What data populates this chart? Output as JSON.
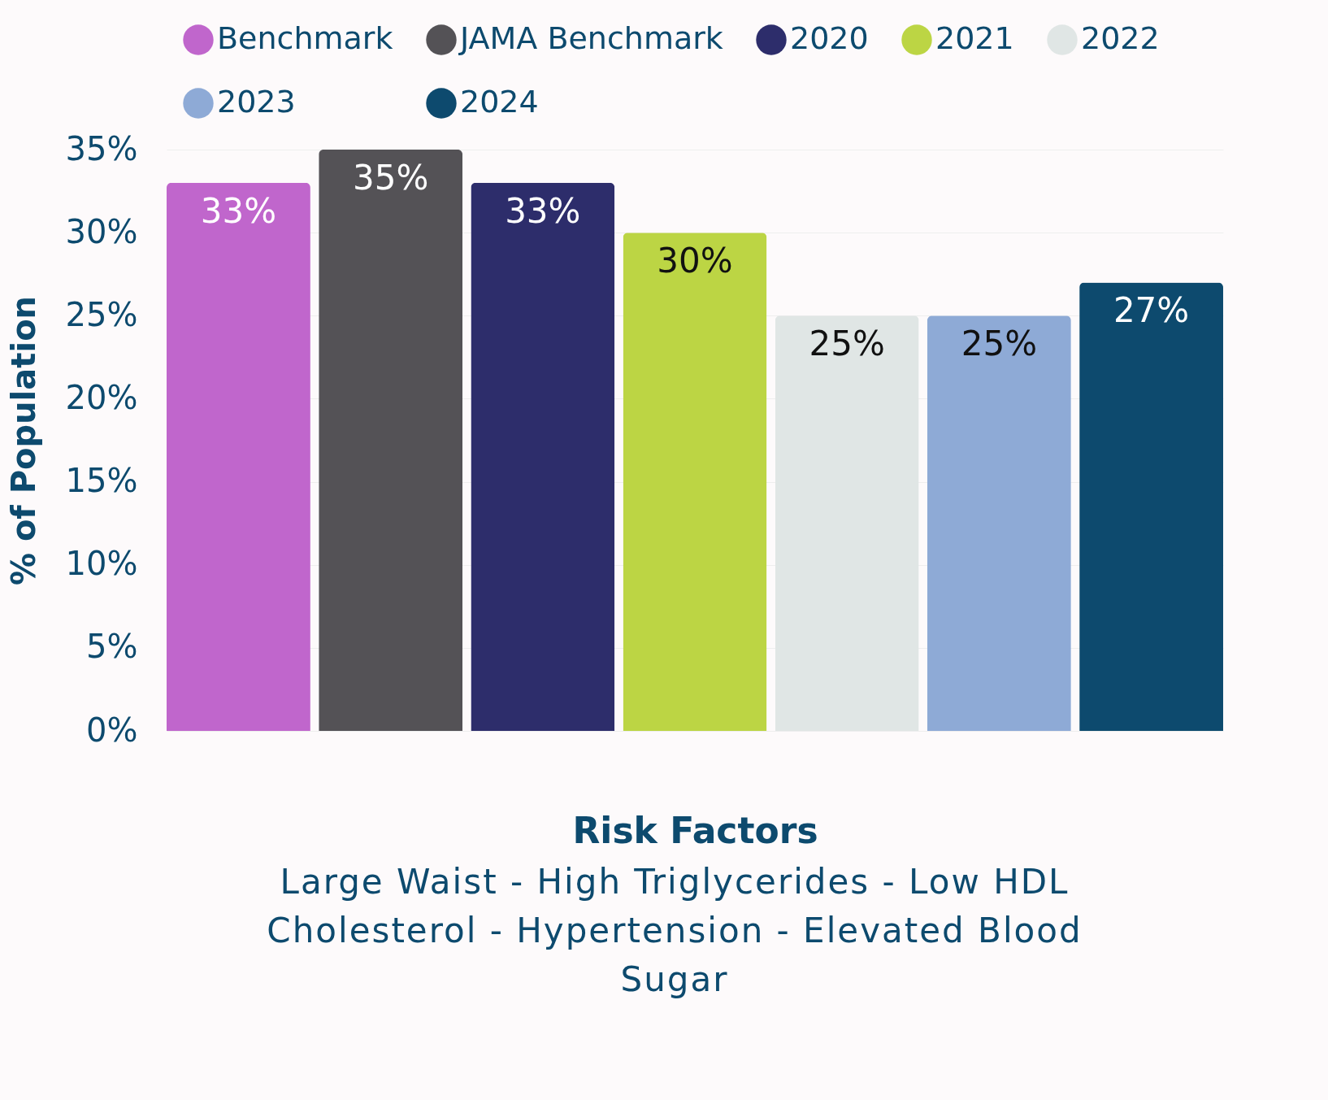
{
  "chart_data": {
    "type": "bar",
    "xlabel": "Risk Factors",
    "ylabel": "% of Population",
    "annotations": [
      "Large Waist - High Triglycerides - Low HDL Cholesterol - Hypertension - Elevated Blood Sugar"
    ],
    "categories": [
      null
    ],
    "series": [
      {
        "name": "Benchmark",
        "color": "#c066cc",
        "values": [
          33
        ],
        "value_labels": [
          "33%"
        ]
      },
      {
        "name": "JAMA Benchmark",
        "color": "#545256",
        "values": [
          35
        ],
        "value_labels": [
          "35%"
        ]
      },
      {
        "name": "2020",
        "color": "#2d2d6b",
        "values": [
          33
        ],
        "value_labels": [
          "33%"
        ]
      },
      {
        "name": "2021",
        "color": "#bcd544",
        "values": [
          30
        ],
        "value_labels": [
          "30%"
        ]
      },
      {
        "name": "2022",
        "color": "#e0e6e5",
        "values": [
          25
        ],
        "value_labels": [
          "25%"
        ]
      },
      {
        "name": "2023",
        "color": "#8eaad6",
        "values": [
          25
        ],
        "value_labels": [
          "25%"
        ]
      },
      {
        "name": "2024",
        "color": "#0d4a6e",
        "values": [
          27
        ],
        "value_labels": [
          "27%"
        ]
      }
    ],
    "ylim": [
      0,
      35
    ],
    "yticks": [
      {
        "value": 0,
        "label": "0%"
      },
      {
        "value": 5,
        "label": "5%"
      },
      {
        "value": 10,
        "label": "10%"
      },
      {
        "value": 15,
        "label": "15%"
      },
      {
        "value": 20,
        "label": "20%"
      },
      {
        "value": 25,
        "label": "25%"
      },
      {
        "value": 30,
        "label": "30%"
      },
      {
        "value": 35,
        "label": "35%"
      }
    ],
    "grid": "y",
    "legend": "top"
  }
}
